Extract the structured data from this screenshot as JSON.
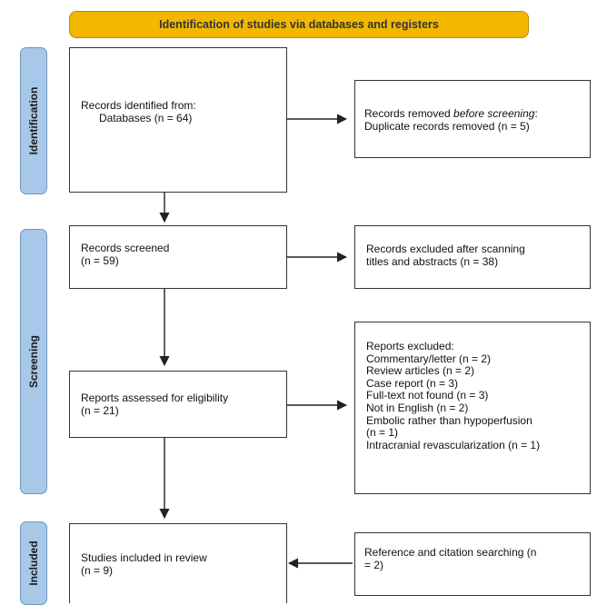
{
  "banner": {
    "title": "Identification of studies via databases and registers"
  },
  "phases": {
    "identification": "Identification",
    "screening": "Screening",
    "included": "Included"
  },
  "boxes": {
    "records_identified": {
      "line1": "Records identified from:",
      "line2": "Databases (n = 64)"
    },
    "records_removed": {
      "prefix": "Records removed ",
      "emphasis": "before screening",
      "suffix": ":",
      "line2": "Duplicate records removed (n = 5)"
    },
    "records_screened": {
      "line1": "Records screened",
      "line2": "(n = 59)"
    },
    "records_excluded": {
      "line1": "Records excluded after scanning",
      "line2": "titles and abstracts (n = 38)"
    },
    "reports_assessed": {
      "line1": "Reports assessed for eligibility",
      "line2": "(n = 21)"
    },
    "reports_excluded": {
      "title": "Reports excluded:",
      "items": [
        "Commentary/letter (n = 2)",
        "Review articles (n = 2)",
        "Case report (n = 3)",
        "Full-text not found (n = 3)",
        "Not in English (n = 2)",
        "Embolic rather than hypoperfusion",
        "(n = 1)",
        "Intracranial revascularization (n = 1)"
      ]
    },
    "studies_included": {
      "line1": "Studies included in review",
      "line2": "(n = 9)"
    },
    "reference_search": {
      "line1": "Reference and citation searching (n",
      "line2": "= 2)"
    }
  },
  "colors": {
    "banner": "#f2b800",
    "phase": "#a8c8ea",
    "border": "#333333"
  }
}
